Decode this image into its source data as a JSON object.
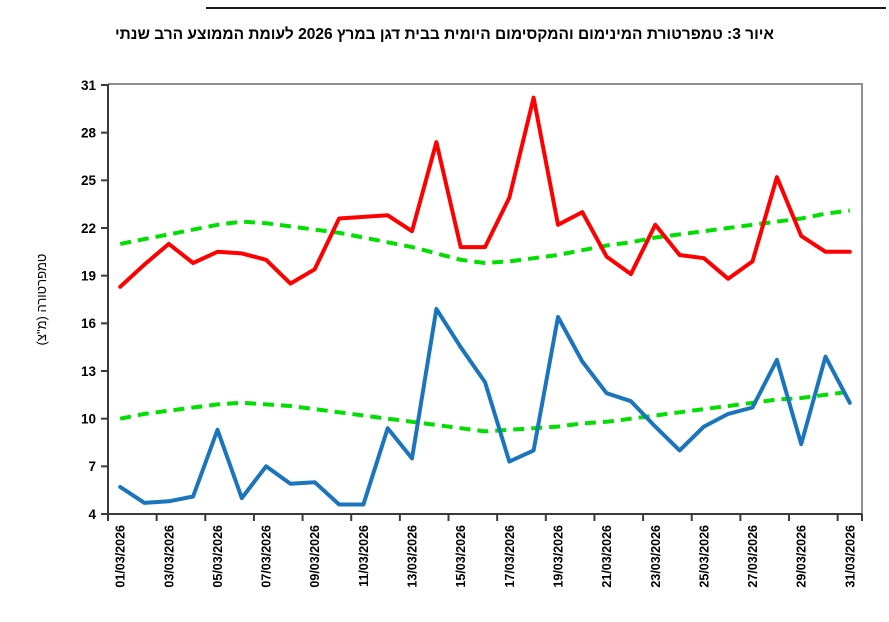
{
  "page": {
    "title": "איור 3: טמפרטורת המינימום והמקסימום היומית בבית דגן במרץ 2026 לעומת הממוצע הרב שנתי"
  },
  "chart_data": {
    "type": "line",
    "title": "איור 3: טמפרטורת המינימום והמקסימום היומית בבית דגן במרץ 2026 לעומת הממוצע הרב שנתי",
    "xlabel": "",
    "ylabel": "טמפרטורה (מ\"צ)",
    "ylim": [
      4,
      31
    ],
    "y_ticks": [
      4,
      7,
      10,
      13,
      16,
      19,
      22,
      25,
      28,
      31
    ],
    "x_days": 31,
    "x_tick_labels": [
      "01/03/2026",
      "03/03/2026",
      "05/03/2026",
      "07/03/2026",
      "09/03/2026",
      "11/03/2026",
      "13/03/2026",
      "15/03/2026",
      "17/03/2026",
      "19/03/2026",
      "21/03/2026",
      "23/03/2026",
      "25/03/2026",
      "27/03/2026",
      "29/03/2026",
      "31/03/2026"
    ],
    "grid": "off",
    "legend": "none",
    "colors": {
      "max": "#FF0000",
      "min": "#1B75BC",
      "average": "#00DF00",
      "axis": "#3a3a3a",
      "border": "#909090"
    },
    "series": [
      {
        "name": "max-temp",
        "color": "#FF0000",
        "style": "solid",
        "values": [
          18.3,
          19.7,
          21.0,
          19.8,
          20.5,
          20.4,
          20.0,
          18.5,
          19.4,
          22.6,
          22.7,
          22.8,
          21.8,
          27.4,
          20.8,
          20.8,
          23.9,
          30.2,
          22.2,
          23.0,
          20.2,
          19.1,
          22.2,
          20.3,
          20.1,
          18.8,
          19.9,
          25.2,
          21.5,
          20.5,
          20.5
        ]
      },
      {
        "name": "min-temp",
        "color": "#1B75BC",
        "style": "solid",
        "values": [
          5.7,
          4.7,
          4.8,
          5.1,
          9.3,
          5.0,
          7.0,
          5.9,
          6.0,
          4.6,
          4.6,
          9.4,
          7.5,
          16.9,
          14.5,
          12.3,
          7.3,
          8.0,
          16.4,
          13.6,
          11.6,
          11.1,
          9.5,
          8.0,
          9.5,
          10.3,
          10.7,
          13.7,
          8.4,
          13.9,
          11.0
        ]
      },
      {
        "name": "avg-max-longterm",
        "color": "#00DF00",
        "style": "dashed",
        "values": [
          21.0,
          21.3,
          21.6,
          21.9,
          22.2,
          22.4,
          22.3,
          22.1,
          21.9,
          21.7,
          21.4,
          21.1,
          20.8,
          20.4,
          20.0,
          19.8,
          19.9,
          20.1,
          20.3,
          20.6,
          20.9,
          21.1,
          21.4,
          21.6,
          21.8,
          22.0,
          22.2,
          22.4,
          22.6,
          22.9,
          23.1
        ]
      },
      {
        "name": "avg-min-longterm",
        "color": "#00DF00",
        "style": "dashed",
        "values": [
          10.0,
          10.3,
          10.5,
          10.7,
          10.9,
          11.0,
          10.9,
          10.8,
          10.6,
          10.4,
          10.2,
          10.0,
          9.8,
          9.6,
          9.4,
          9.2,
          9.3,
          9.4,
          9.5,
          9.7,
          9.8,
          10.0,
          10.2,
          10.4,
          10.6,
          10.8,
          11.0,
          11.2,
          11.3,
          11.5,
          11.7
        ]
      }
    ]
  }
}
